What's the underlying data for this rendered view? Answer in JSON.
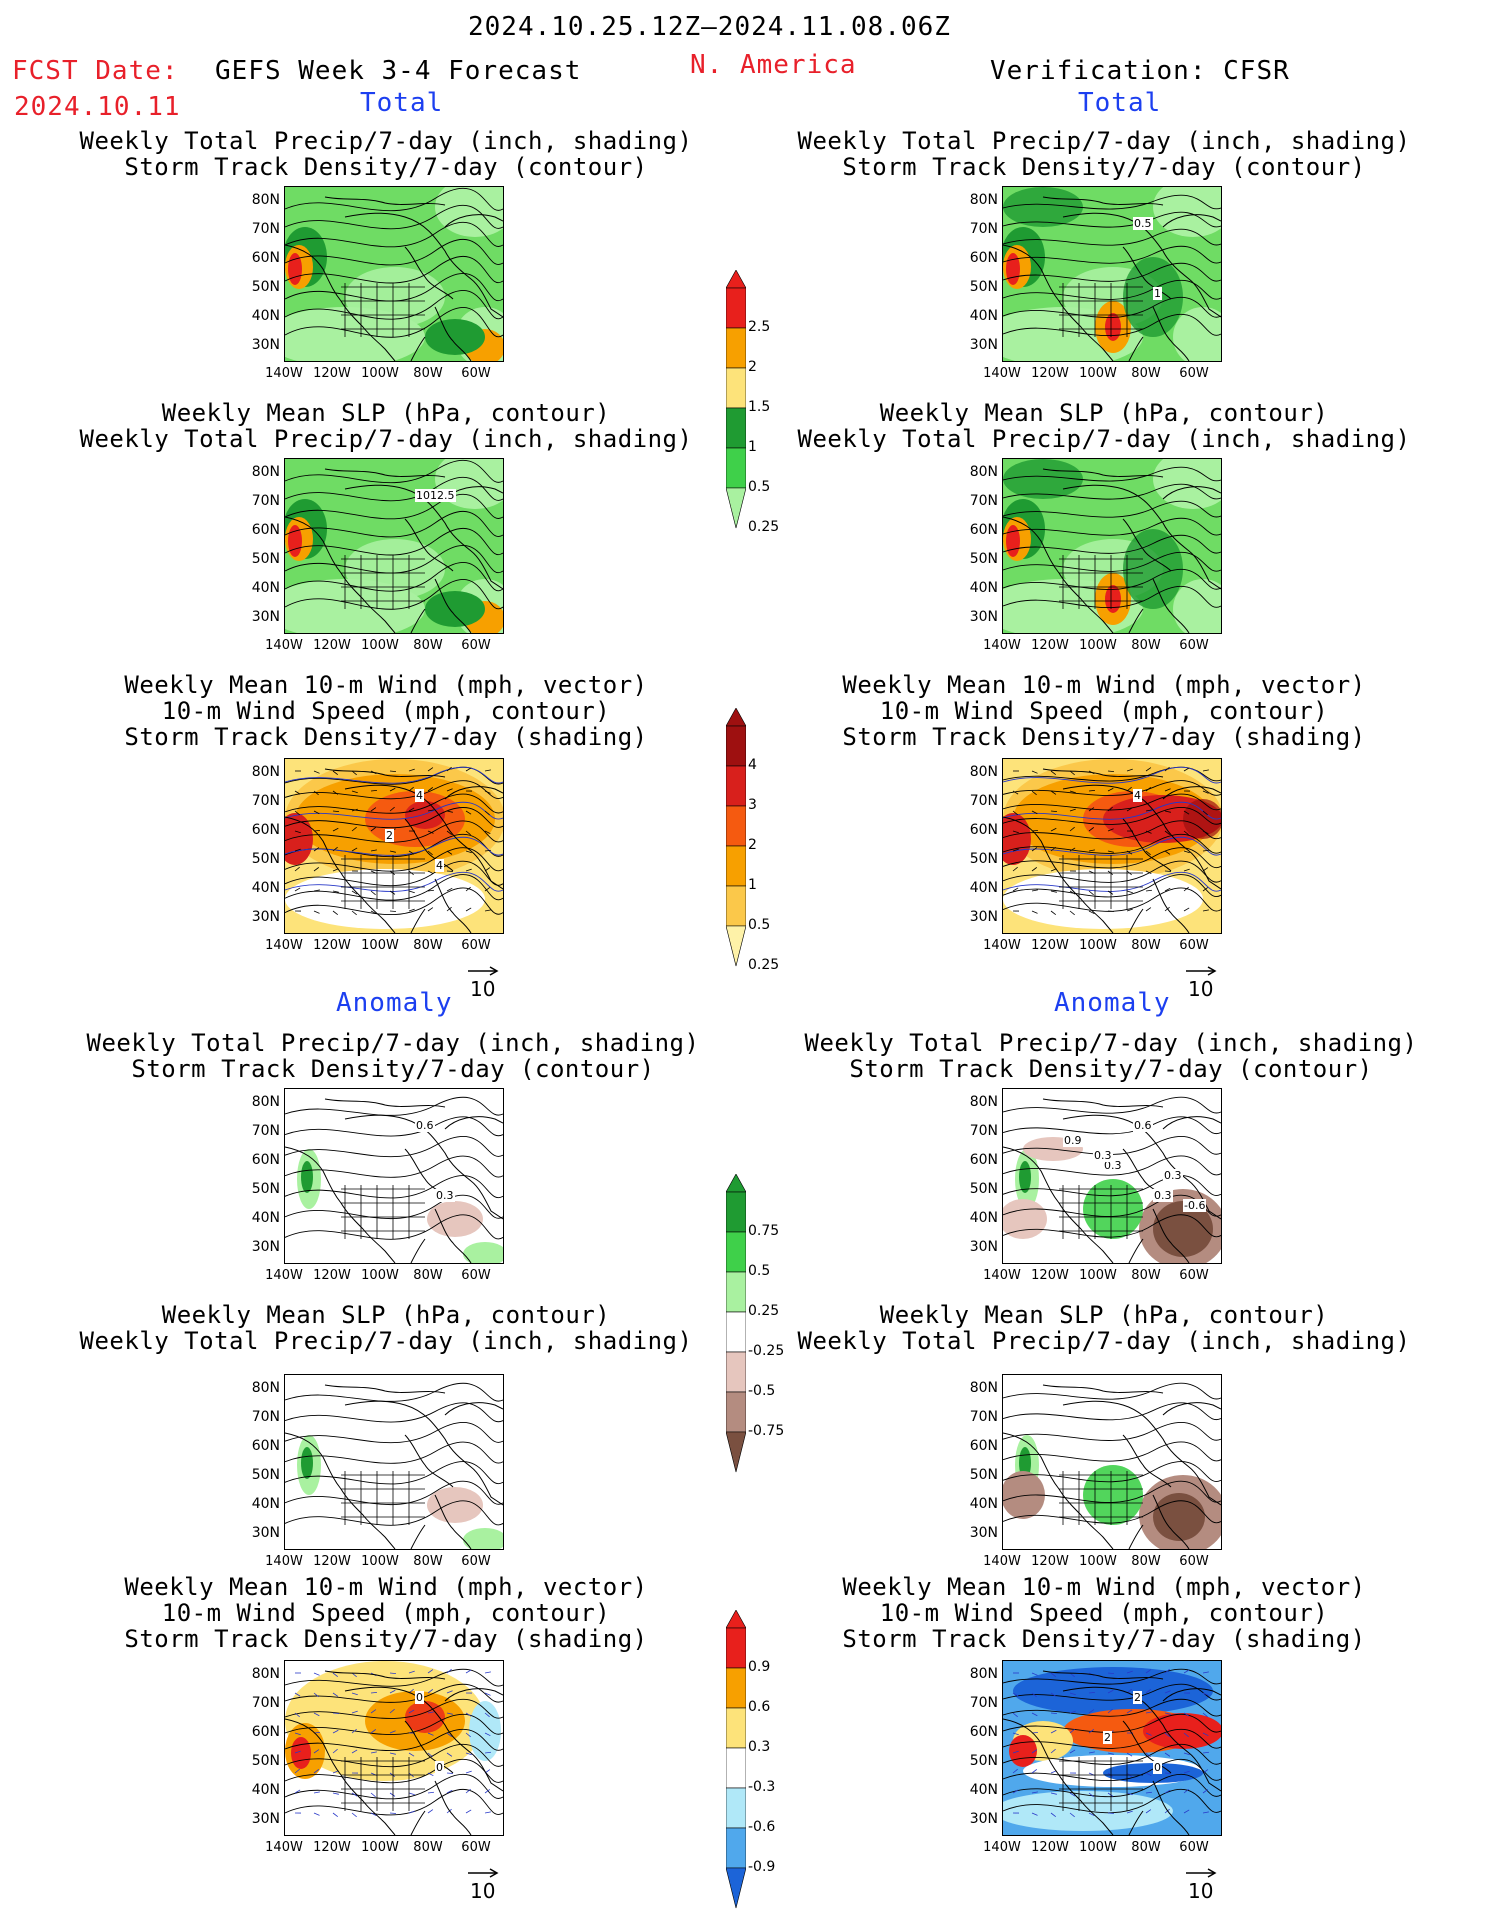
{
  "header": {
    "period": "2024.10.25.12Z–2024.11.08.06Z",
    "fcst_label": "FCST Date:",
    "fcst_date": "2024.10.11",
    "model": "GEFS Week 3-4 Forecast",
    "region": "N. America",
    "verification": "Verification: CFSR"
  },
  "sections": {
    "total": "Total",
    "anomaly": "Anomaly"
  },
  "titles": {
    "precip_storm": [
      "Weekly Total Precip/7-day (inch, shading)",
      "Storm Track Density/7-day (contour)"
    ],
    "slp_precip": [
      "Weekly Mean SLP (hPa, contour)",
      "Weekly Total Precip/7-day (inch, shading)"
    ],
    "wind": [
      "Weekly Mean 10-m Wind (mph, vector)",
      "10-m Wind Speed (mph, contour)",
      "Storm Track Density/7-day (shading)"
    ]
  },
  "axes": {
    "lat": [
      "80N",
      "70N",
      "60N",
      "50N",
      "40N",
      "30N"
    ],
    "lon": [
      "140W",
      "120W",
      "100W",
      "80W",
      "60W"
    ]
  },
  "vector_ref": "10",
  "contour_labels": {
    "fc_slp": "1012.5",
    "fc_wind": [
      "4",
      "4",
      "2"
    ],
    "ver_precip": [
      "0.5",
      "1"
    ],
    "ver_wind": "4",
    "an_fc_precip": [
      "0.6",
      "0.3"
    ],
    "an_ver_precip": [
      "0.6",
      "0.3",
      "0.3",
      "0.3",
      "0.9",
      "0.3",
      "-0.6"
    ],
    "an_fc_wind": [
      "0",
      "0"
    ],
    "an_ver_wind": [
      "2",
      "0",
      "2"
    ]
  },
  "colorbars": {
    "total_precip": {
      "labels": [
        "2.5",
        "2",
        "1.5",
        "1",
        "0.5",
        "0.25"
      ],
      "colors": [
        "#e8201c",
        "#f7a000",
        "#fde37a",
        "#1f9b32",
        "#3fd04a",
        "#a9f1a0"
      ]
    },
    "total_storm": {
      "labels": [
        "4",
        "3",
        "2",
        "1",
        "0.5",
        "0.25"
      ],
      "colors": [
        "#9e1010",
        "#d8201c",
        "#f55a10",
        "#f7a000",
        "#fbc84a",
        "#fef2a8"
      ]
    },
    "anom_precip": {
      "labels": [
        "0.75",
        "0.5",
        "0.25",
        "-0.25",
        "-0.5",
        "-0.75"
      ],
      "colors": [
        "#1f9b32",
        "#3fd04a",
        "#a9f1a0",
        "#ffffff",
        "#e6c6be",
        "#b48c80",
        "#7a5040"
      ]
    },
    "anom_storm": {
      "labels": [
        "0.9",
        "0.6",
        "0.3",
        "-0.3",
        "-0.6",
        "-0.9"
      ],
      "colors": [
        "#e8201c",
        "#f7a000",
        "#fde37a",
        "#ffffff",
        "#b0e8f8",
        "#50a8ec",
        "#1c64d8"
      ]
    }
  }
}
